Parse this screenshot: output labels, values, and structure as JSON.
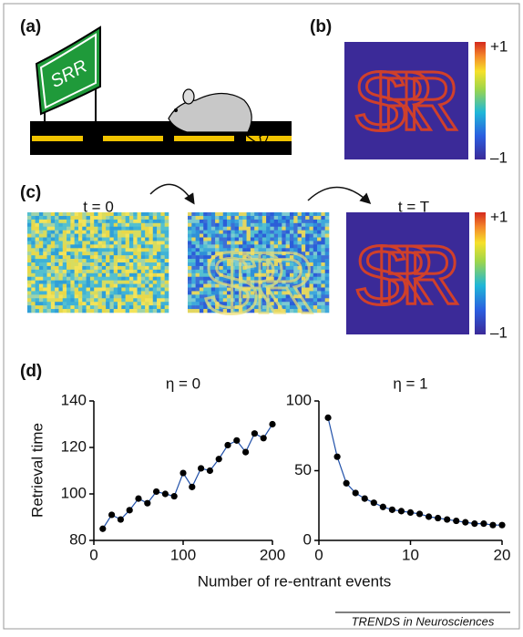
{
  "figure": {
    "panel_a": {
      "label": "(a)",
      "sign": "SRR"
    },
    "panel_b": {
      "label": "(b)",
      "image_text": "SRR",
      "colorbar_max": "+1",
      "colorbar_min": "–1"
    },
    "panel_c": {
      "label": "(c)",
      "start": "t = 0",
      "end": "t = T"
    },
    "panel_d": {
      "label": "(d)",
      "x_label": "Number of re-entrant events"
    },
    "footer": "TRENDS in Neurosciences"
  },
  "chart_data": [
    {
      "type": "line",
      "title": "η = 0",
      "y_label": "Retrieval time",
      "x": [
        10,
        20,
        30,
        40,
        50,
        60,
        70,
        80,
        90,
        100,
        110,
        120,
        130,
        140,
        150,
        160,
        170,
        180,
        190,
        200
      ],
      "values": [
        85,
        91,
        89,
        93,
        98,
        96,
        101,
        100,
        99,
        109,
        103,
        111,
        110,
        115,
        121,
        123,
        118,
        126,
        124,
        130
      ],
      "color": "#1f4fa8",
      "xlim": [
        0,
        200
      ],
      "xticks": [
        0,
        100,
        200
      ],
      "ylim": [
        80,
        140
      ],
      "yticks": [
        80,
        100,
        120,
        140
      ]
    },
    {
      "type": "line",
      "title": "η = 1",
      "x": [
        1,
        2,
        3,
        4,
        5,
        6,
        7,
        8,
        9,
        10,
        11,
        12,
        13,
        14,
        15,
        16,
        17,
        18,
        19,
        20
      ],
      "values": [
        88,
        60,
        41,
        34,
        30,
        27,
        24,
        22,
        21,
        20,
        19,
        17,
        16,
        15,
        14,
        13,
        12,
        12,
        11,
        11
      ],
      "color": "#1f4fa8",
      "xlim": [
        0,
        20
      ],
      "xticks": [
        0,
        10,
        20
      ],
      "ylim": [
        0,
        100
      ],
      "yticks": [
        0,
        50,
        100
      ]
    }
  ]
}
